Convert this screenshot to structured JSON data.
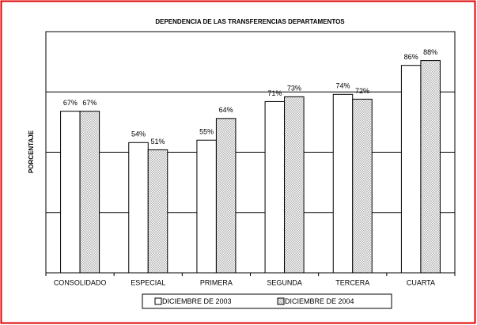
{
  "chart_data": {
    "type": "bar",
    "title": "DEPENDENCIA DE LAS TRANSFERENCIAS DEPARTAMENTOS",
    "y_label": "PORCENTAJE",
    "categories": [
      "CONSOLIDADO",
      "ESPECIAL",
      "PRIMERA",
      "SEGUNDA",
      "TERCERA",
      "CUARTA"
    ],
    "series": [
      {
        "name": "DICIEMBRE DE 2003",
        "color": "#ffffff",
        "values": [
          67,
          54,
          55,
          71,
          74,
          86
        ],
        "value_labels": [
          "67%",
          "54%",
          "55%",
          "71%",
          "74%",
          "86%"
        ]
      },
      {
        "name": "DICIEMBRE DE 2004",
        "color": "#b0b0b0",
        "pattern": "dots",
        "values": [
          67,
          51,
          64,
          73,
          72,
          88
        ],
        "value_labels": [
          "67%",
          "51%",
          "64%",
          "73%",
          "72%",
          "88%"
        ]
      }
    ],
    "ylim": [
      0,
      100
    ],
    "yticks": [
      0,
      25,
      50,
      75,
      100
    ],
    "grid": true,
    "legend": "bottom"
  }
}
